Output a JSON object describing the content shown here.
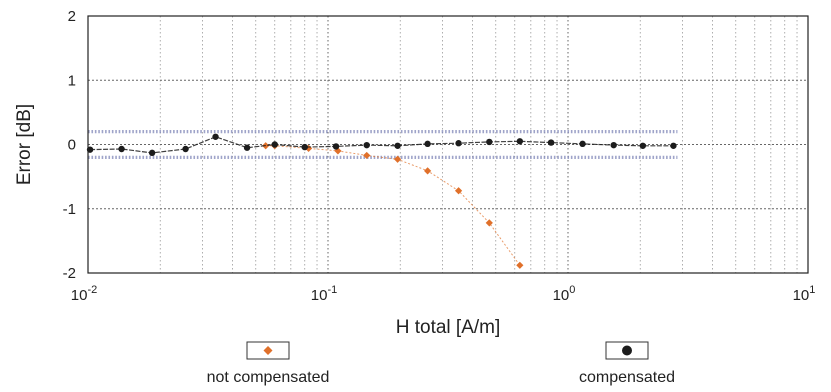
{
  "chart_data": {
    "type": "line",
    "xlabel": "H total [A/m]",
    "ylabel": "Error [dB]",
    "xscale": "log",
    "xlim": [
      0.01,
      10
    ],
    "ylim": [
      -2,
      2
    ],
    "xticks": [
      {
        "value": 0.01,
        "base": "10",
        "exp": "-2"
      },
      {
        "value": 0.1,
        "base": "10",
        "exp": "-1"
      },
      {
        "value": 1,
        "base": "10",
        "exp": "0"
      },
      {
        "value": 10,
        "base": "10",
        "exp": "1"
      }
    ],
    "yticks": [
      {
        "value": 2,
        "label": "2"
      },
      {
        "value": 1,
        "label": "1"
      },
      {
        "value": 0,
        "label": "0"
      },
      {
        "value": -1,
        "label": "-1"
      },
      {
        "value": -2,
        "label": "-2"
      }
    ],
    "grid": true,
    "tolerance_band": [
      -0.2,
      0.2
    ],
    "series": [
      {
        "name": "not compensated",
        "marker": "diamond",
        "color": "#e0702a",
        "x": [
          0.055,
          0.06,
          0.083,
          0.11,
          0.145,
          0.195,
          0.26,
          0.35,
          0.47,
          0.63
        ],
        "y": [
          -0.02,
          -0.02,
          -0.06,
          -0.1,
          -0.17,
          -0.23,
          -0.41,
          -0.72,
          -1.22,
          -1.88
        ]
      },
      {
        "name": "compensated",
        "marker": "circle",
        "color": "#1c1c1c",
        "x": [
          0.0102,
          0.0138,
          0.0185,
          0.0255,
          0.034,
          0.046,
          0.06,
          0.08,
          0.108,
          0.145,
          0.195,
          0.26,
          0.35,
          0.47,
          0.63,
          0.85,
          1.15,
          1.55,
          2.05,
          2.75
        ],
        "y": [
          -0.08,
          -0.07,
          -0.13,
          -0.07,
          0.12,
          -0.05,
          0.0,
          -0.04,
          -0.03,
          -0.01,
          -0.02,
          0.01,
          0.02,
          0.04,
          0.05,
          0.03,
          0.01,
          -0.01,
          -0.02,
          -0.02
        ]
      }
    ],
    "legend": {
      "placement": "bottom",
      "entries": [
        "not compensated",
        "compensated"
      ]
    }
  }
}
